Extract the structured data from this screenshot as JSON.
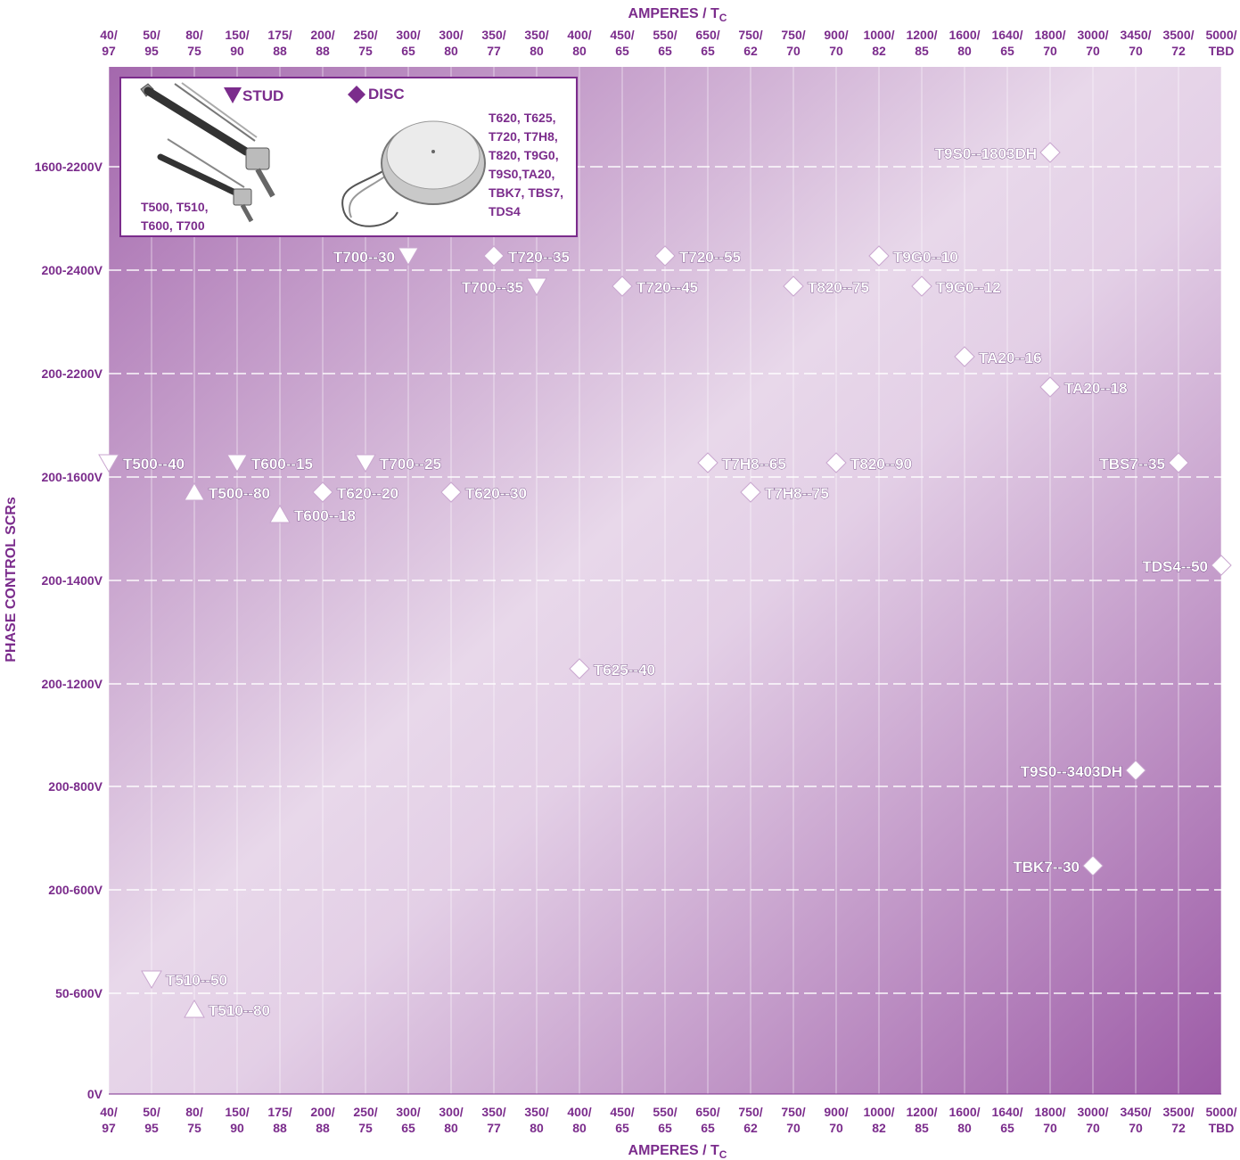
{
  "colors": {
    "accent": "#7b2c8c",
    "plot_dark": "#a468ad",
    "plot_light": "#e8d8ea",
    "marker_fill": "#ffffff"
  },
  "chart_data": {
    "type": "scatter",
    "xlabel": "AMPERES / T",
    "xlabel_sub": "C",
    "ylabel": "PHASE CONTROL SCRs",
    "x_ticks": [
      [
        "40/",
        "97"
      ],
      [
        "50/",
        "95"
      ],
      [
        "80/",
        "75"
      ],
      [
        "150/",
        "90"
      ],
      [
        "175/",
        "88"
      ],
      [
        "200/",
        "88"
      ],
      [
        "250/",
        "75"
      ],
      [
        "300/",
        "65"
      ],
      [
        "300/",
        "80"
      ],
      [
        "350/",
        "77"
      ],
      [
        "350/",
        "80"
      ],
      [
        "400/",
        "80"
      ],
      [
        "450/",
        "65"
      ],
      [
        "550/",
        "65"
      ],
      [
        "650/",
        "65"
      ],
      [
        "750/",
        "62"
      ],
      [
        "750/",
        "70"
      ],
      [
        "900/",
        "70"
      ],
      [
        "1000/",
        "82"
      ],
      [
        "1200/",
        "85"
      ],
      [
        "1600/",
        "80"
      ],
      [
        "1640/",
        "65"
      ],
      [
        "1800/",
        "70"
      ],
      [
        "3000/",
        "70"
      ],
      [
        "3450/",
        "70"
      ],
      [
        "3500/",
        "72"
      ],
      [
        "5000/",
        "TBD"
      ]
    ],
    "y_ticks": [
      "0V",
      "50-600V",
      "200-600V",
      "200-800V",
      "200-1200V",
      "200-1400V",
      "200-1600V",
      "200-2200V",
      "200-2400V",
      "1600-2200V"
    ],
    "grid": true,
    "legend": {
      "placement": "top-left",
      "stud_label": "STUD",
      "disc_label": "DISC",
      "stud_models": [
        "T500, T510,",
        "T600, T700"
      ],
      "disc_models": [
        "T620, T625,",
        "T720, T7H8,",
        "T820, T9G0,",
        "T9S0,TA20,",
        "TBK7, TBS7,",
        "TDS4"
      ]
    },
    "series": [
      {
        "name": "STUD",
        "points": [
          {
            "label": "T500--40",
            "x": "40/97",
            "y": "200-1600V",
            "marker": "triangle-down"
          },
          {
            "label": "T600--15",
            "x": "150/90",
            "y": "200-1600V",
            "marker": "triangle-down"
          },
          {
            "label": "T700--25",
            "x": "250/75",
            "y": "200-1600V",
            "marker": "triangle-down"
          },
          {
            "label": "T700--30",
            "x": "300/65",
            "y": "200-2400V",
            "marker": "triangle-down"
          },
          {
            "label": "T700--35",
            "x": "350/80",
            "y": "200-2400V",
            "marker": "triangle-down"
          },
          {
            "label": "T510--50",
            "x": "50/95",
            "y": "50-600V",
            "marker": "triangle-down"
          },
          {
            "label": "T500--80",
            "x": "80/75",
            "y": "200-1600V",
            "marker": "triangle-up"
          },
          {
            "label": "T600--18",
            "x": "175/88",
            "y": "200-1600V",
            "marker": "triangle-up"
          },
          {
            "label": "T510--80",
            "x": "80/75",
            "y": "50-600V",
            "marker": "triangle-up"
          }
        ]
      },
      {
        "name": "DISC",
        "points": [
          {
            "label": "T9S0--1803DH",
            "x": "1800/70",
            "y": "1600-2200V",
            "marker": "diamond"
          },
          {
            "label": "T720--35",
            "x": "350/77",
            "y": "200-2400V",
            "marker": "diamond"
          },
          {
            "label": "T720--55",
            "x": "550/65",
            "y": "200-2400V",
            "marker": "diamond"
          },
          {
            "label": "T9G0--10",
            "x": "1000/82",
            "y": "200-2400V",
            "marker": "diamond"
          },
          {
            "label": "T720--45",
            "x": "450/65",
            "y": "200-2400V",
            "marker": "diamond"
          },
          {
            "label": "T820--75",
            "x": "750/70",
            "y": "200-2400V",
            "marker": "diamond"
          },
          {
            "label": "T9G0--12",
            "x": "1200/85",
            "y": "200-2400V",
            "marker": "diamond"
          },
          {
            "label": "TA20--16",
            "x": "1600/80",
            "y": "200-2200V",
            "marker": "diamond"
          },
          {
            "label": "TA20--18",
            "x": "1800/70",
            "y": "200-2200V",
            "marker": "diamond"
          },
          {
            "label": "T7H8--65",
            "x": "650/65",
            "y": "200-1600V",
            "marker": "diamond"
          },
          {
            "label": "T820--90",
            "x": "900/70",
            "y": "200-1600V",
            "marker": "diamond"
          },
          {
            "label": "TBS7--35",
            "x": "3500/72",
            "y": "200-1600V",
            "marker": "diamond"
          },
          {
            "label": "T620--20",
            "x": "200/88",
            "y": "200-1600V",
            "marker": "diamond"
          },
          {
            "label": "T620--30",
            "x": "300/80",
            "y": "200-1600V",
            "marker": "diamond"
          },
          {
            "label": "T7H8--75",
            "x": "750/62",
            "y": "200-1600V",
            "marker": "diamond"
          },
          {
            "label": "TDS4--50",
            "x": "5000/TBD",
            "y": "200-1400V",
            "marker": "diamond"
          },
          {
            "label": "T625--40",
            "x": "400/80",
            "y": "200-1200V",
            "marker": "diamond"
          },
          {
            "label": "T9S0--3403DH",
            "x": "3450/70",
            "y": "200-800V",
            "marker": "diamond"
          },
          {
            "label": "TBK7--30",
            "x": "3000/70",
            "y": "200-600V",
            "marker": "diamond"
          }
        ]
      }
    ]
  }
}
